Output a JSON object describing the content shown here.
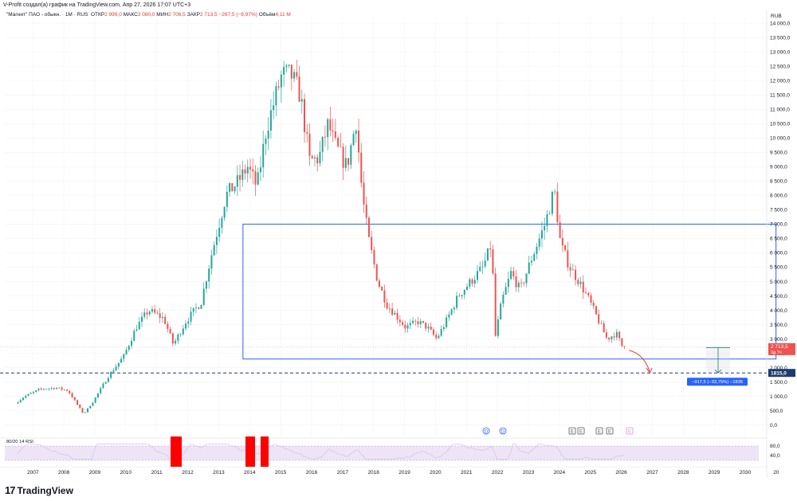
{
  "header": {
    "credit": "V-Profit создал(а) график на TradingView.com, Апр 27, 2026 17:07 UTC+3",
    "symbol": "\"Магнит\" ПАО - обыкн. · 1М · RUS",
    "open_label": "ОТКР",
    "open_value": "2 999,0",
    "high_label": "МАКС",
    "high_value": "3 080,0",
    "low_label": "МИН",
    "low_value": "2 706,5",
    "close_label": "ЗАКР",
    "close_value": "2 713,5",
    "change": "−267,5 (−8,97%)",
    "volume_label": "Объём",
    "volume_value": "4,11 М"
  },
  "currency": "RUB",
  "price_tag": {
    "value": "2 713,5",
    "countdown": "3д 7ч"
  },
  "level_tag": "1815,0",
  "measure_tag": "−917,5 (−33,75%) −1835",
  "event_markers": [
    "D",
    "D",
    "E",
    "E",
    "E",
    "E",
    "E"
  ],
  "rsi_label": "80/20 14 RSI",
  "rsi_ticks": [
    "80,0",
    "40,0"
  ],
  "logo": "TradingView",
  "colors": {
    "up": "#26a69a",
    "down": "#ef5350",
    "box": "#2962ff",
    "level": "#1e3a6e",
    "rsi_band": "#ede4f5",
    "rsi_alert": "#ff0000"
  },
  "chart_data": {
    "type": "candlestick",
    "timeframe": "1M",
    "y_ticks": [
      0,
      500,
      1000,
      1500,
      2000,
      2500,
      3000,
      3500,
      4000,
      4500,
      5000,
      5500,
      6000,
      6500,
      7000,
      7500,
      8000,
      8500,
      9000,
      9500,
      10000,
      10500,
      11000,
      11500,
      12000,
      12500,
      13000,
      13500,
      14000
    ],
    "y_tick_labels": [
      "0,0",
      "500,0",
      "1 000,0",
      "1 500,0",
      "2 000,0",
      "2 500,0",
      "3 000,0",
      "3 500,0",
      "4 000,0",
      "4 500,0",
      "5 000,0",
      "5 500,0",
      "6 000,0",
      "6 500,0",
      "7 000,0",
      "7 500,0",
      "8 000,0",
      "8 500,0",
      "9 000,0",
      "9 500,0",
      "10 000,0",
      "10 500,0",
      "11 000,0",
      "11 500,0",
      "12 000,0",
      "12 500,0",
      "13 000,0",
      "13 500,0",
      "14 000,0"
    ],
    "ylim": [
      -400,
      14200
    ],
    "x_ticks": [
      "2007",
      "2008",
      "2009",
      "2010",
      "2011",
      "2012",
      "2013",
      "2014",
      "2015",
      "2016",
      "2017",
      "2018",
      "2019",
      "2020",
      "2021",
      "2022",
      "2023",
      "2024",
      "2025",
      "2026",
      "2027",
      "2028",
      "2029",
      "2030",
      "20"
    ],
    "xlim": [
      2006.3,
      2030.9
    ],
    "price_anchors": [
      [
        2006.7,
        750
      ],
      [
        2007.0,
        1000
      ],
      [
        2007.5,
        1250
      ],
      [
        2008.0,
        1300
      ],
      [
        2008.4,
        1200
      ],
      [
        2008.9,
        380
      ],
      [
        2009.2,
        800
      ],
      [
        2009.7,
        1700
      ],
      [
        2010.2,
        2400
      ],
      [
        2010.6,
        3400
      ],
      [
        2011.0,
        4000
      ],
      [
        2011.5,
        3700
      ],
      [
        2011.8,
        2800
      ],
      [
        2012.2,
        3600
      ],
      [
        2012.7,
        4300
      ],
      [
        2013.0,
        5800
      ],
      [
        2013.5,
        8000
      ],
      [
        2013.9,
        8500
      ],
      [
        2014.2,
        9000
      ],
      [
        2014.5,
        8300
      ],
      [
        2014.8,
        10300
      ],
      [
        2015.3,
        12200
      ],
      [
        2015.6,
        12200
      ],
      [
        2015.9,
        11500
      ],
      [
        2016.2,
        9200
      ],
      [
        2016.5,
        9300
      ],
      [
        2016.8,
        10500
      ],
      [
        2017.0,
        9800
      ],
      [
        2017.4,
        9000
      ],
      [
        2017.7,
        10600
      ],
      [
        2017.9,
        8000
      ],
      [
        2018.1,
        6500
      ],
      [
        2018.4,
        5000
      ],
      [
        2018.7,
        4200
      ],
      [
        2019.0,
        3800
      ],
      [
        2019.3,
        3400
      ],
      [
        2019.7,
        3600
      ],
      [
        2020.0,
        3400
      ],
      [
        2020.3,
        3000
      ],
      [
        2020.6,
        3600
      ],
      [
        2021.0,
        4500
      ],
      [
        2021.4,
        5000
      ],
      [
        2021.8,
        5500
      ],
      [
        2022.1,
        6400
      ],
      [
        2022.15,
        2800
      ],
      [
        2022.4,
        4300
      ],
      [
        2022.7,
        5300
      ],
      [
        2023.0,
        4700
      ],
      [
        2023.4,
        5900
      ],
      [
        2023.8,
        7000
      ],
      [
        2024.1,
        8200
      ],
      [
        2024.3,
        6300
      ],
      [
        2024.6,
        5500
      ],
      [
        2024.9,
        5000
      ],
      [
        2025.2,
        4400
      ],
      [
        2025.5,
        3700
      ],
      [
        2025.8,
        3000
      ],
      [
        2026.1,
        3200
      ],
      [
        2026.3,
        2713.5
      ]
    ],
    "annotations": {
      "range_box": {
        "x": [
          2013.99,
          2031.2
        ],
        "y": [
          2300,
          7000
        ]
      },
      "level": 1815,
      "current_price": 2713.5
    },
    "rsi_ticks": [
      80,
      40
    ]
  }
}
